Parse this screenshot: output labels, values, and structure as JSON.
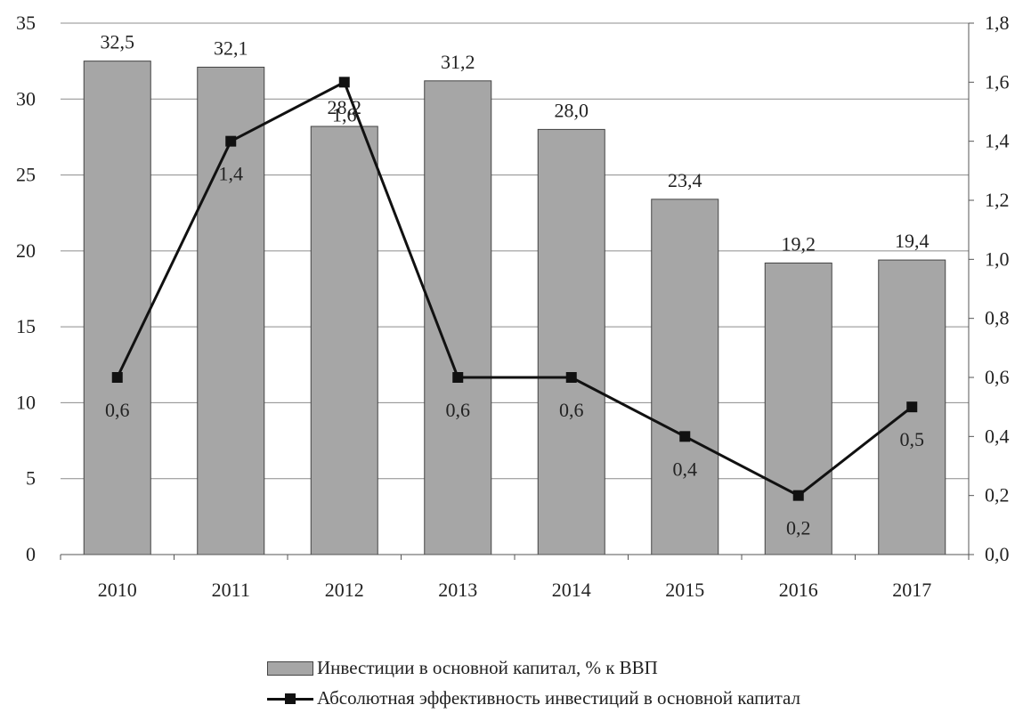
{
  "chart_data": {
    "type": "bar",
    "categories": [
      "2010",
      "2011",
      "2012",
      "2013",
      "2014",
      "2015",
      "2016",
      "2017"
    ],
    "series": [
      {
        "name": "Инвестиции в основной капитал, % к ВВП",
        "type": "bar",
        "axis": "left",
        "values": [
          32.5,
          32.1,
          28.2,
          31.2,
          28.0,
          23.4,
          19.2,
          19.4
        ],
        "labels": [
          "32,5",
          "32,1",
          "28,2",
          "31,2",
          "28,0",
          "23,4",
          "19,2",
          "19,4"
        ],
        "color": "#a6a6a6"
      },
      {
        "name": "Абсолютная эффективность инвестиций в основной капитал",
        "type": "line",
        "axis": "right",
        "values": [
          0.6,
          1.4,
          1.6,
          0.6,
          0.6,
          0.4,
          0.2,
          0.5
        ],
        "labels": [
          "0,6",
          "1,4",
          "1,6",
          "0,6",
          "0,6",
          "0,4",
          "0,2",
          "0,5"
        ],
        "color": "#111111"
      }
    ],
    "y_left": {
      "ylim": [
        0,
        35
      ],
      "ticks": [
        "0",
        "5",
        "10",
        "15",
        "20",
        "25",
        "30",
        "35"
      ]
    },
    "y_right": {
      "ylim": [
        0,
        1.8
      ],
      "ticks": [
        "0,0",
        "0,2",
        "0,4",
        "0,6",
        "0,8",
        "1,0",
        "1,2",
        "1,4",
        "1,6",
        "1,8"
      ]
    },
    "grid": true,
    "legend": "bottom",
    "title": "",
    "xlabel": "",
    "ylabel": ""
  }
}
